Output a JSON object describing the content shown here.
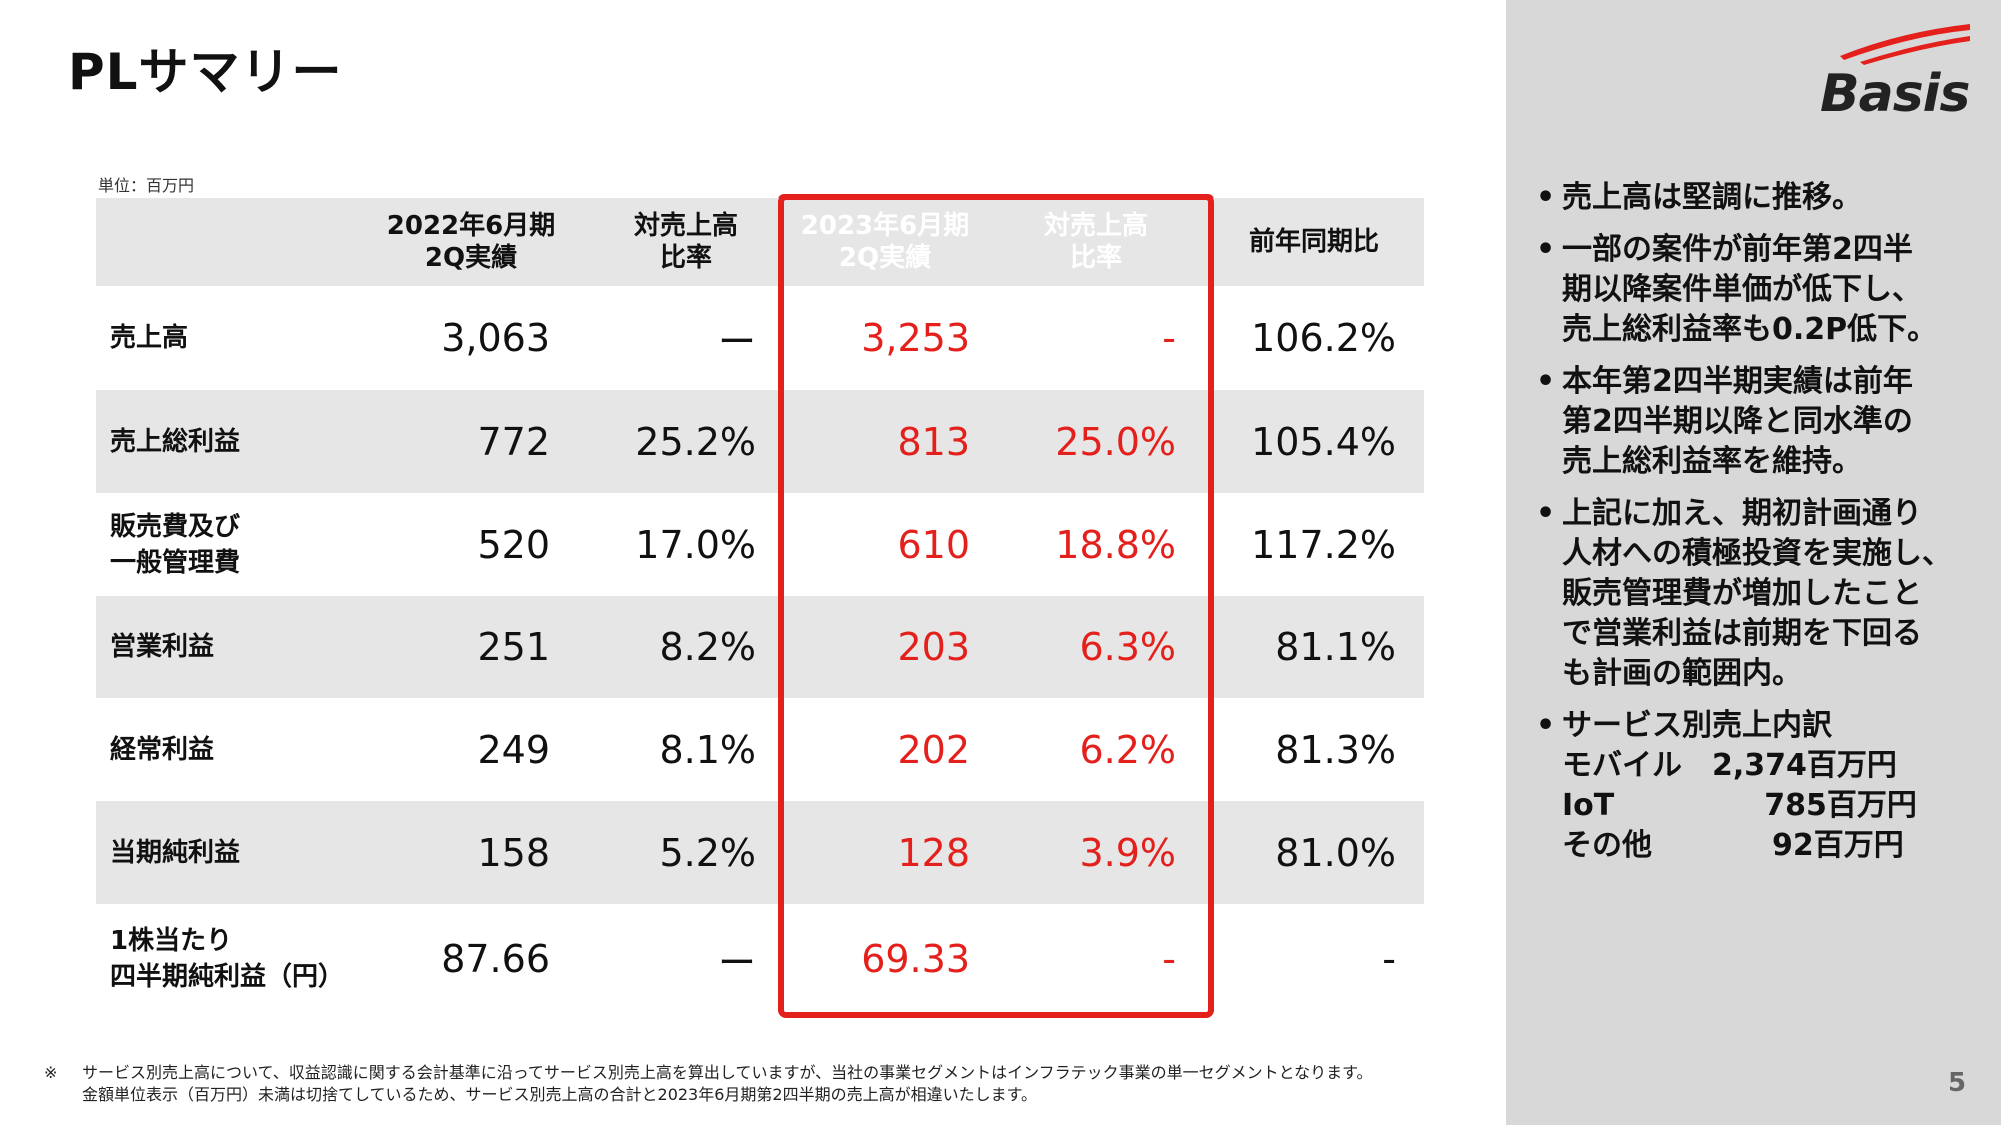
{
  "title": "PLサマリー",
  "logo": {
    "text": "Basis",
    "accent": "#e3201b"
  },
  "unit_note": "単位：百万円",
  "table": {
    "headers": {
      "label": "",
      "fy2022": "2022年6月期\n2Q実績",
      "ratio2022": "対売上高\n比率",
      "fy2023": "2023年6月期\n2Q実績",
      "ratio2023": "対売上高\n比率",
      "yoy": "前年同期比"
    },
    "rows": [
      {
        "label": "売上高",
        "v2022": "3,063",
        "r2022": "ー",
        "v2023": "3,253",
        "r2023": "-",
        "yoy": "106.2%"
      },
      {
        "label": "売上総利益",
        "v2022": "772",
        "r2022": "25.2%",
        "v2023": "813",
        "r2023": "25.0%",
        "yoy": "105.4%"
      },
      {
        "label": "販売費及び\n一般管理費",
        "v2022": "520",
        "r2022": "17.0%",
        "v2023": "610",
        "r2023": "18.8%",
        "yoy": "117.2%"
      },
      {
        "label": "営業利益",
        "v2022": "251",
        "r2022": "8.2%",
        "v2023": "203",
        "r2023": "6.3%",
        "yoy": "81.1%"
      },
      {
        "label": "経常利益",
        "v2022": "249",
        "r2022": "8.1%",
        "v2023": "202",
        "r2023": "6.2%",
        "yoy": "81.3%"
      },
      {
        "label": "当期純利益",
        "v2022": "158",
        "r2022": "5.2%",
        "v2023": "128",
        "r2023": "3.9%",
        "yoy": "81.0%"
      },
      {
        "label": "1株当たり\n四半期純利益（円）",
        "v2022": "87.66",
        "r2022": "ー",
        "v2023": "69.33",
        "r2023": "-",
        "yoy": "-"
      }
    ]
  },
  "bullets": [
    {
      "lines": [
        "売上高は堅調に推移。"
      ]
    },
    {
      "lines": [
        "一部の案件が前年第2四半",
        "期以降案件単価が低下し、",
        "売上総利益率も0.2P低下。"
      ]
    },
    {
      "lines": [
        "本年第2四半期実績は前年",
        "第2四半期以降と同水準の",
        "売上総利益率を維持。"
      ]
    },
    {
      "lines": [
        "上記に加え、期初計画通り",
        "人材への積極投資を実施し、",
        "販売管理費が増加したこと",
        "で営業利益は前期を下回る",
        "も計画の範囲内。"
      ]
    },
    {
      "lines": [
        "サービス別売上内訳",
        "モバイル　2,374百万円",
        "IoT　　　　　785百万円",
        "その他　　　　92百万円"
      ]
    }
  ],
  "footnote": {
    "mark": "※",
    "lines": [
      "サービス別売上高について、収益認識に関する会計基準に沿ってサービス別売上高を算出していますが、当社の事業セグメントはインフラテック事業の単一セグメントとなります。",
      "金額単位表示（百万円）未満は切捨てしているため、サービス別売上高の合計と2023年6月期第2四半期の売上高が相違いたします。"
    ]
  },
  "page_number": "5"
}
